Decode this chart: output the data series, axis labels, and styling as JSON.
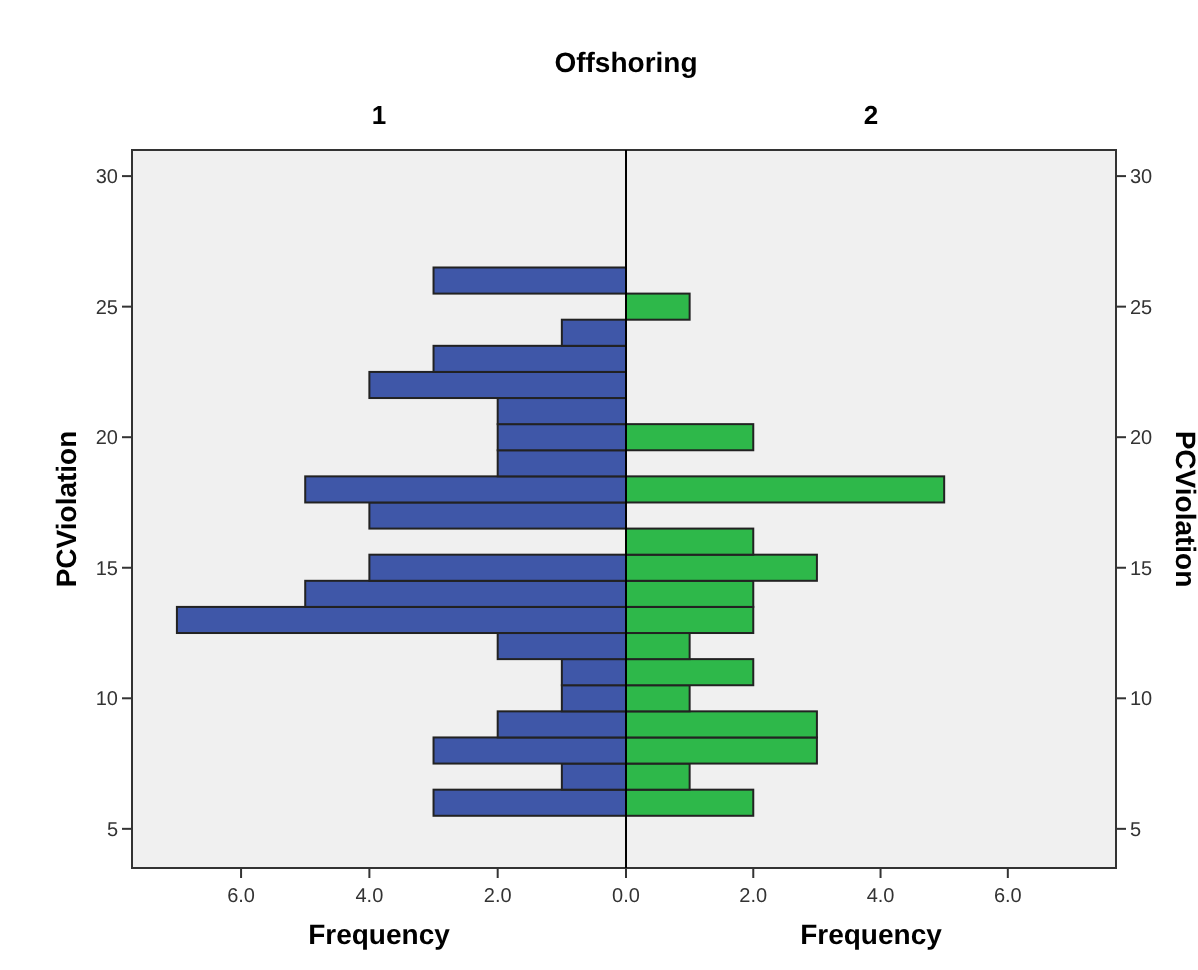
{
  "chart_data": [
    {
      "type": "histogram",
      "title": "Offshoring",
      "subtitle": "1",
      "orientation": "horizontal",
      "xlabel": "Frequency",
      "ylabel": "PCViolation",
      "color": "#3f57a8",
      "bins": [
        5.5,
        6.5,
        7.5,
        8.5,
        9.5,
        10.5,
        11.5,
        12.5,
        13.5,
        14.5,
        15.5,
        16.5,
        17.5,
        18.5,
        19.5,
        20.5,
        21.5,
        22.5,
        23.5,
        24.5,
        25.5,
        26.5
      ],
      "values": [
        3,
        1,
        3,
        2,
        1,
        1,
        2,
        7,
        5,
        4,
        0,
        4,
        5,
        2,
        2,
        2,
        4,
        3,
        1,
        0,
        3
      ],
      "xlim": [
        7.7,
        0
      ],
      "xticks": [
        {
          "value": 6,
          "label": "6.0"
        },
        {
          "value": 4,
          "label": "4.0"
        },
        {
          "value": 2,
          "label": "2.0"
        },
        {
          "value": 0,
          "label": "0.0"
        }
      ],
      "ylim": [
        3.5,
        31
      ],
      "yticks": [
        5,
        10,
        15,
        20,
        25,
        30
      ],
      "grid": false
    },
    {
      "type": "histogram",
      "subtitle": "2",
      "orientation": "horizontal",
      "xlabel": "Frequency",
      "ylabel": "PCViolation",
      "color": "#2eb84a",
      "bins": [
        5.5,
        6.5,
        7.5,
        8.5,
        9.5,
        10.5,
        11.5,
        12.5,
        13.5,
        14.5,
        15.5,
        16.5,
        17.5,
        18.5,
        19.5,
        20.5,
        21.5,
        22.5,
        23.5,
        24.5,
        25.5,
        26.5
      ],
      "values": [
        2,
        1,
        3,
        3,
        1,
        2,
        1,
        2,
        2,
        3,
        2,
        0,
        5,
        0,
        2,
        0,
        0,
        0,
        0,
        1,
        0
      ],
      "xlim": [
        0,
        7.7
      ],
      "xticks": [
        {
          "value": 0,
          "label": null
        },
        {
          "value": 2,
          "label": "2.0"
        },
        {
          "value": 4,
          "label": "4.0"
        },
        {
          "value": 6,
          "label": "6.0"
        }
      ],
      "ylim": [
        3.5,
        31
      ],
      "yticks": [
        5,
        10,
        15,
        20,
        25,
        30
      ],
      "grid": false
    }
  ]
}
